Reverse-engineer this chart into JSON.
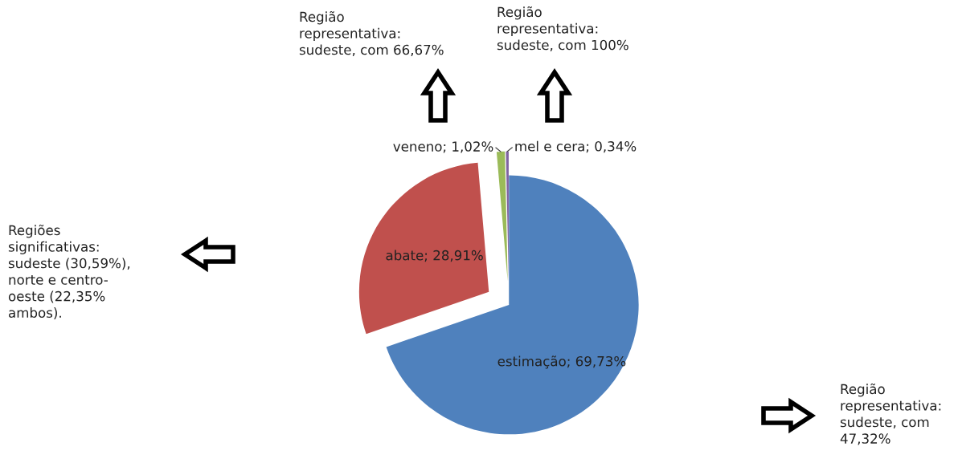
{
  "chart_data": {
    "type": "pie",
    "categories": [
      "estimação",
      "abate",
      "veneno",
      "mel e cera"
    ],
    "values": [
      69.73,
      28.91,
      1.02,
      0.34
    ],
    "value_labels": [
      "69,73%",
      "28,91%",
      "1,02%",
      "0,34%"
    ],
    "colors": [
      "#4f81bd",
      "#c0504d",
      "#9bbb59",
      "#8064a2"
    ],
    "annotations": [
      "Região\nrepresentativa:\nsudeste, com\n47,32%",
      "Regiões\nsignificativas:\nsudeste (30,59%),\nnorte e centro-\noeste (22,35%\nambos).",
      "Região\nrepresentativa:\nsudeste, com 66,67%",
      "Região\nrepresentativa:\nsudeste, com 100%"
    ]
  }
}
